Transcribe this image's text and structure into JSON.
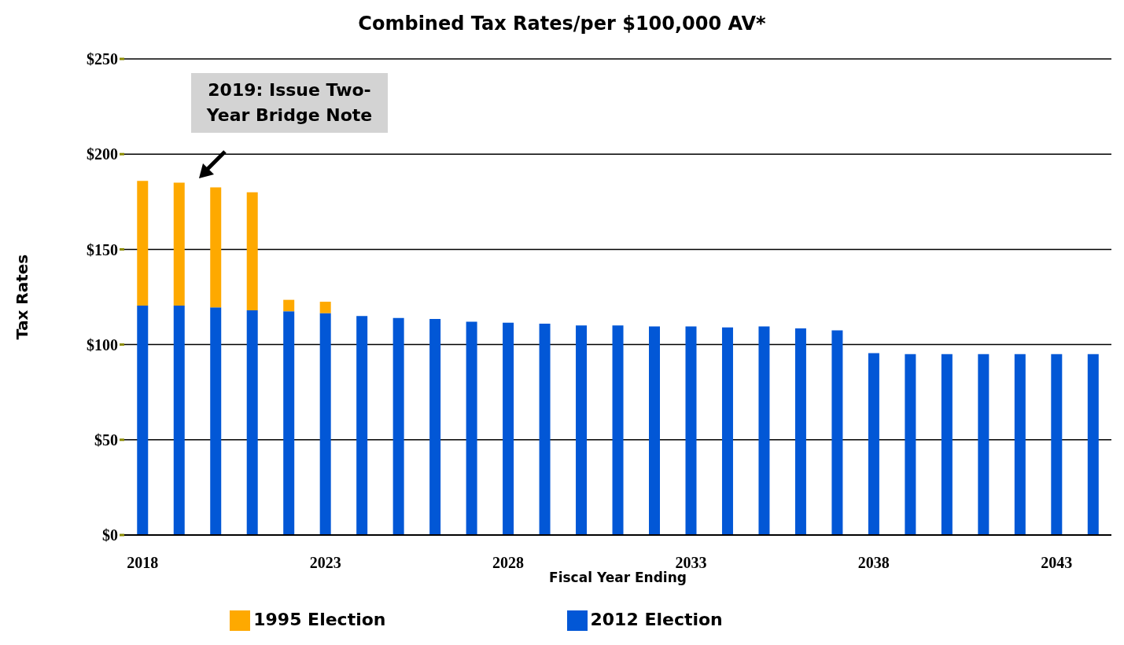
{
  "chart_data": {
    "type": "bar",
    "title": "Combined Tax Rates/per $100,000 AV*",
    "xlabel": "Fiscal Year Ending",
    "ylabel": "Tax Rates",
    "categories": [
      "2018",
      null,
      null,
      null,
      null,
      "2023",
      null,
      null,
      null,
      null,
      "2028",
      null,
      null,
      null,
      null,
      "2033",
      null,
      null,
      null,
      null,
      "2038",
      null,
      null,
      null,
      null,
      "2043",
      null
    ],
    "series": [
      {
        "name": "2012 Election",
        "color": "#0257d6",
        "values": [
          120.5,
          120.5,
          119.5,
          118,
          117.5,
          116.5,
          115,
          114,
          113.5,
          112,
          111.5,
          111,
          110,
          110,
          109.5,
          109.5,
          109,
          109.5,
          108.5,
          107.5,
          95.5,
          95,
          95,
          95,
          95,
          95,
          95
        ]
      },
      {
        "name": "1995 Election",
        "color": "#fea900",
        "values": [
          65.5,
          64.5,
          63,
          62,
          6,
          6,
          null,
          null,
          null,
          null,
          null,
          null,
          null,
          null,
          null,
          null,
          null,
          null,
          null,
          null,
          null,
          null,
          null,
          null,
          null,
          null,
          null
        ]
      }
    ],
    "stacked": true,
    "ylim": [
      0,
      250
    ],
    "yticks": [
      {
        "value": 0,
        "label": "$0"
      },
      {
        "value": 50,
        "label": "$50"
      },
      {
        "value": 100,
        "label": "$100"
      },
      {
        "value": 150,
        "label": "$150"
      },
      {
        "value": 200,
        "label": "$200"
      },
      {
        "value": 250,
        "label": "$250"
      }
    ],
    "grid": "y",
    "legend": "bottom",
    "annotations": [
      "2019: Issue Two-Year Bridge Note"
    ]
  }
}
